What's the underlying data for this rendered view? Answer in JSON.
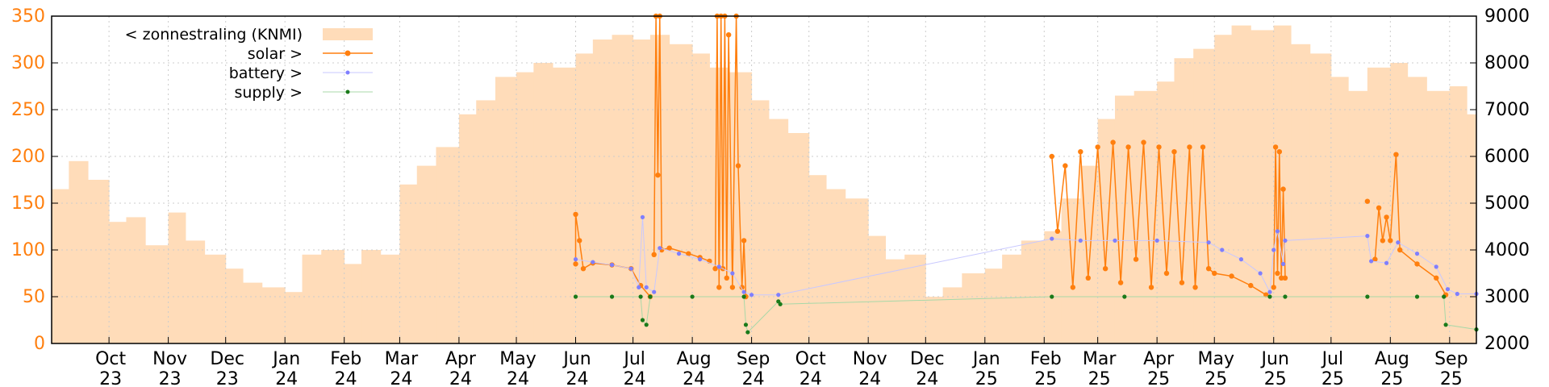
{
  "chart_data": {
    "type": "line",
    "title": "",
    "xlabel": "",
    "ylabel": "",
    "y2label": "",
    "grid": true,
    "legend_position": "top-left",
    "x_range": [
      "2023-09-01",
      "2025-09-15"
    ],
    "ylim": [
      0,
      350
    ],
    "y2lim": [
      2000,
      9000
    ],
    "yticks": [
      "0",
      "50",
      "100",
      "150",
      "200",
      "250",
      "300",
      "350"
    ],
    "y2ticks": [
      "2000",
      "3000",
      "4000",
      "5000",
      "6000",
      "7000",
      "8000",
      "9000"
    ],
    "xticks": [
      {
        "date": "2023-10-01",
        "label": [
          "Oct",
          "23"
        ]
      },
      {
        "date": "2023-11-01",
        "label": [
          "Nov",
          "23"
        ]
      },
      {
        "date": "2023-12-01",
        "label": [
          "Dec",
          "23"
        ]
      },
      {
        "date": "2024-01-01",
        "label": [
          "Jan",
          "24"
        ]
      },
      {
        "date": "2024-02-01",
        "label": [
          "Feb",
          "24"
        ]
      },
      {
        "date": "2024-03-01",
        "label": [
          "Mar",
          "24"
        ]
      },
      {
        "date": "2024-04-01",
        "label": [
          "Apr",
          "24"
        ]
      },
      {
        "date": "2024-05-01",
        "label": [
          "May",
          "24"
        ]
      },
      {
        "date": "2024-06-01",
        "label": [
          "Jun",
          "24"
        ]
      },
      {
        "date": "2024-07-01",
        "label": [
          "Jul",
          "24"
        ]
      },
      {
        "date": "2024-08-01",
        "label": [
          "Aug",
          "24"
        ]
      },
      {
        "date": "2024-09-01",
        "label": [
          "Sep",
          "24"
        ]
      },
      {
        "date": "2024-10-01",
        "label": [
          "Oct",
          "24"
        ]
      },
      {
        "date": "2024-11-01",
        "label": [
          "Nov",
          "24"
        ]
      },
      {
        "date": "2024-12-01",
        "label": [
          "Dec",
          "24"
        ]
      },
      {
        "date": "2025-01-01",
        "label": [
          "Jan",
          "25"
        ]
      },
      {
        "date": "2025-02-01",
        "label": [
          "Feb",
          "25"
        ]
      },
      {
        "date": "2025-03-01",
        "label": [
          "Mar",
          "25"
        ]
      },
      {
        "date": "2025-04-01",
        "label": [
          "Apr",
          "25"
        ]
      },
      {
        "date": "2025-05-01",
        "label": [
          "May",
          "25"
        ]
      },
      {
        "date": "2025-06-01",
        "label": [
          "Jun",
          "25"
        ]
      },
      {
        "date": "2025-07-01",
        "label": [
          "Jul",
          "25"
        ]
      },
      {
        "date": "2025-08-01",
        "label": [
          "Aug",
          "25"
        ]
      },
      {
        "date": "2025-09-01",
        "label": [
          "Sep",
          "25"
        ]
      }
    ],
    "series": [
      {
        "name": "< zonnestraling (KNMI)",
        "axis": "y2",
        "style": "bars",
        "color": "#ffdcb9",
        "points": [
          [
            "2023-09-01",
            5300
          ],
          [
            "2023-09-10",
            5900
          ],
          [
            "2023-09-20",
            5500
          ],
          [
            "2023-10-01",
            4600
          ],
          [
            "2023-10-10",
            4700
          ],
          [
            "2023-10-20",
            4100
          ],
          [
            "2023-11-01",
            4800
          ],
          [
            "2023-11-10",
            4200
          ],
          [
            "2023-11-20",
            3900
          ],
          [
            "2023-12-01",
            3600
          ],
          [
            "2023-12-10",
            3300
          ],
          [
            "2023-12-20",
            3200
          ],
          [
            "2024-01-01",
            3100
          ],
          [
            "2024-01-10",
            3900
          ],
          [
            "2024-01-20",
            4000
          ],
          [
            "2024-02-01",
            3700
          ],
          [
            "2024-02-10",
            4000
          ],
          [
            "2024-02-20",
            3900
          ],
          [
            "2024-03-01",
            5400
          ],
          [
            "2024-03-10",
            5800
          ],
          [
            "2024-03-20",
            6200
          ],
          [
            "2024-04-01",
            6900
          ],
          [
            "2024-04-10",
            7200
          ],
          [
            "2024-04-20",
            7700
          ],
          [
            "2024-05-01",
            7800
          ],
          [
            "2024-05-10",
            8000
          ],
          [
            "2024-05-20",
            7900
          ],
          [
            "2024-06-01",
            8200
          ],
          [
            "2024-06-10",
            8500
          ],
          [
            "2024-06-20",
            8600
          ],
          [
            "2024-07-01",
            8500
          ],
          [
            "2024-07-10",
            8600
          ],
          [
            "2024-07-20",
            8400
          ],
          [
            "2024-08-01",
            8200
          ],
          [
            "2024-08-10",
            7900
          ],
          [
            "2024-08-20",
            7800
          ],
          [
            "2024-09-01",
            7200
          ],
          [
            "2024-09-10",
            6800
          ],
          [
            "2024-09-20",
            6500
          ],
          [
            "2024-10-01",
            5600
          ],
          [
            "2024-10-10",
            5300
          ],
          [
            "2024-10-20",
            5100
          ],
          [
            "2024-11-01",
            4300
          ],
          [
            "2024-11-10",
            3800
          ],
          [
            "2024-11-20",
            3900
          ],
          [
            "2024-12-01",
            3000
          ],
          [
            "2024-12-10",
            3200
          ],
          [
            "2024-12-20",
            3500
          ],
          [
            "2025-01-01",
            3600
          ],
          [
            "2025-01-10",
            3900
          ],
          [
            "2025-01-20",
            4200
          ],
          [
            "2025-02-01",
            4400
          ],
          [
            "2025-02-10",
            5100
          ],
          [
            "2025-02-20",
            5800
          ],
          [
            "2025-03-01",
            6800
          ],
          [
            "2025-03-10",
            7300
          ],
          [
            "2025-03-20",
            7400
          ],
          [
            "2025-04-01",
            7600
          ],
          [
            "2025-04-10",
            8100
          ],
          [
            "2025-04-20",
            8300
          ],
          [
            "2025-05-01",
            8600
          ],
          [
            "2025-05-10",
            8800
          ],
          [
            "2025-05-20",
            8700
          ],
          [
            "2025-06-01",
            8800
          ],
          [
            "2025-06-10",
            8400
          ],
          [
            "2025-06-20",
            8200
          ],
          [
            "2025-07-01",
            7700
          ],
          [
            "2025-07-10",
            7400
          ],
          [
            "2025-07-20",
            7900
          ],
          [
            "2025-08-01",
            8000
          ],
          [
            "2025-08-10",
            7700
          ],
          [
            "2025-08-20",
            7400
          ],
          [
            "2025-09-01",
            7500
          ],
          [
            "2025-09-10",
            6900
          ]
        ]
      },
      {
        "name": "solar >",
        "axis": "y",
        "style": "linespoints",
        "color": "#ff7f0e",
        "segments": [
          [
            [
              "2024-06-01",
              85
            ],
            [
              "2024-06-01",
              138
            ],
            [
              "2024-06-03",
              110
            ],
            [
              "2024-06-05",
              80
            ],
            [
              "2024-06-10",
              86
            ],
            [
              "2024-06-20",
              84
            ],
            [
              "2024-06-30",
              80
            ],
            [
              "2024-07-05",
              62
            ],
            [
              "2024-07-10",
              50
            ]
          ],
          [
            [
              "2024-07-12",
              95
            ],
            [
              "2024-07-13",
              350
            ],
            [
              "2024-07-14",
              180
            ],
            [
              "2024-07-15",
              350
            ],
            [
              "2024-07-16",
              100
            ],
            [
              "2024-07-20",
              102
            ],
            [
              "2024-07-30",
              96
            ],
            [
              "2024-08-05",
              92
            ],
            [
              "2024-08-10",
              88
            ]
          ],
          [
            [
              "2024-08-13",
              80
            ],
            [
              "2024-08-14",
              350
            ],
            [
              "2024-08-15",
              60
            ],
            [
              "2024-08-16",
              350
            ],
            [
              "2024-08-17",
              80
            ],
            [
              "2024-08-18",
              350
            ],
            [
              "2024-08-19",
              70
            ],
            [
              "2024-08-20",
              330
            ],
            [
              "2024-08-22",
              60
            ],
            [
              "2024-08-24",
              350
            ],
            [
              "2024-08-25",
              190
            ],
            [
              "2024-08-27",
              60
            ],
            [
              "2024-08-28",
              110
            ],
            [
              "2024-08-29",
              50
            ]
          ],
          [
            [
              "2025-02-05",
              200
            ],
            [
              "2025-02-08",
              120
            ],
            [
              "2025-02-12",
              190
            ],
            [
              "2025-02-16",
              60
            ],
            [
              "2025-02-20",
              205
            ],
            [
              "2025-02-24",
              70
            ],
            [
              "2025-03-01",
              210
            ],
            [
              "2025-03-05",
              80
            ],
            [
              "2025-03-09",
              215
            ],
            [
              "2025-03-13",
              65
            ],
            [
              "2025-03-17",
              210
            ],
            [
              "2025-03-21",
              90
            ],
            [
              "2025-03-25",
              215
            ],
            [
              "2025-03-29",
              60
            ],
            [
              "2025-04-02",
              210
            ],
            [
              "2025-04-06",
              75
            ],
            [
              "2025-04-10",
              205
            ],
            [
              "2025-04-14",
              65
            ],
            [
              "2025-04-18",
              210
            ],
            [
              "2025-04-21",
              60
            ],
            [
              "2025-04-25",
              210
            ],
            [
              "2025-04-28",
              80
            ],
            [
              "2025-05-01",
              75
            ],
            [
              "2025-05-10",
              72
            ],
            [
              "2025-05-20",
              62
            ],
            [
              "2025-05-28",
              52
            ]
          ],
          [
            [
              "2025-06-01",
              60
            ],
            [
              "2025-06-02",
              210
            ],
            [
              "2025-06-03",
              75
            ],
            [
              "2025-06-04",
              205
            ],
            [
              "2025-06-05",
              70
            ],
            [
              "2025-06-06",
              165
            ],
            [
              "2025-06-07",
              70
            ]
          ],
          [
            [
              "2025-07-20",
              152
            ]
          ],
          [
            [
              "2025-07-24",
              90
            ],
            [
              "2025-07-26",
              145
            ],
            [
              "2025-07-28",
              110
            ],
            [
              "2025-07-30",
              135
            ],
            [
              "2025-08-01",
              110
            ],
            [
              "2025-08-04",
              202
            ],
            [
              "2025-08-06",
              100
            ],
            [
              "2025-08-15",
              85
            ],
            [
              "2025-08-25",
              70
            ],
            [
              "2025-08-30",
              52
            ]
          ]
        ]
      },
      {
        "name": "battery >",
        "axis": "y",
        "style": "linespoints",
        "color": "#7f7fff",
        "points": [
          [
            "2024-06-01",
            90
          ],
          [
            "2024-06-10",
            87
          ],
          [
            "2024-06-20",
            84
          ],
          [
            "2024-06-30",
            80
          ],
          [
            "2024-07-04",
            60
          ],
          [
            "2024-07-06",
            135
          ],
          [
            "2024-07-08",
            60
          ],
          [
            "2024-07-12",
            55
          ],
          [
            "2024-07-15",
            102
          ],
          [
            "2024-07-25",
            96
          ],
          [
            "2024-08-05",
            90
          ],
          [
            "2024-08-15",
            82
          ],
          [
            "2024-08-22",
            75
          ],
          [
            "2024-08-28",
            55
          ],
          [
            "2024-09-01",
            52
          ],
          [
            "2024-09-15",
            52
          ],
          [
            "2025-02-05",
            112
          ],
          [
            "2025-02-20",
            110
          ],
          [
            "2025-03-10",
            110
          ],
          [
            "2025-04-01",
            110
          ],
          [
            "2025-04-28",
            108
          ],
          [
            "2025-05-05",
            100
          ],
          [
            "2025-05-15",
            90
          ],
          [
            "2025-05-25",
            75
          ],
          [
            "2025-05-30",
            55
          ],
          [
            "2025-06-01",
            100
          ],
          [
            "2025-06-03",
            120
          ],
          [
            "2025-06-06",
            85
          ],
          [
            "2025-06-07",
            110
          ],
          [
            "2025-07-20",
            115
          ],
          [
            "2025-07-22",
            88
          ],
          [
            "2025-07-30",
            86
          ],
          [
            "2025-08-05",
            108
          ],
          [
            "2025-08-15",
            96
          ],
          [
            "2025-08-25",
            82
          ],
          [
            "2025-08-31",
            58
          ],
          [
            "2025-09-05",
            53
          ],
          [
            "2025-09-15",
            53
          ]
        ]
      },
      {
        "name": "supply >",
        "axis": "y",
        "style": "linespoints",
        "color": "#1a7a1a",
        "points": [
          [
            "2024-06-01",
            50
          ],
          [
            "2024-06-20",
            50
          ],
          [
            "2024-07-05",
            50
          ],
          [
            "2024-07-06",
            25
          ],
          [
            "2024-07-08",
            20
          ],
          [
            "2024-07-10",
            50
          ],
          [
            "2024-08-01",
            50
          ],
          [
            "2024-08-28",
            50
          ],
          [
            "2024-08-29",
            20
          ],
          [
            "2024-08-30",
            12
          ],
          [
            "2024-09-15",
            45
          ],
          [
            "2024-09-16",
            42
          ],
          [
            "2025-02-05",
            50
          ],
          [
            "2025-03-15",
            50
          ],
          [
            "2025-05-30",
            50
          ],
          [
            "2025-06-07",
            50
          ],
          [
            "2025-07-20",
            50
          ],
          [
            "2025-08-15",
            50
          ],
          [
            "2025-08-29",
            50
          ],
          [
            "2025-08-30",
            20
          ],
          [
            "2025-09-15",
            15
          ]
        ]
      }
    ]
  }
}
